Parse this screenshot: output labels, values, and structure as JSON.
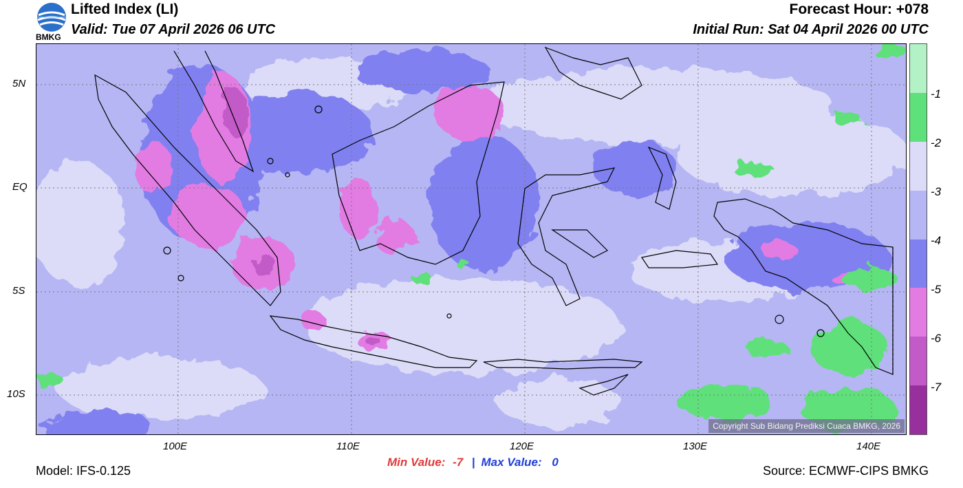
{
  "header": {
    "title": "Lifted Index (LI)",
    "valid": "Valid: Tue 07 April 2026 06 UTC",
    "forecast_hour": "Forecast Hour: +078",
    "initial_run": "Initial Run: Sat 04 April 2026 00 UTC"
  },
  "logo": {
    "text": "BMKG"
  },
  "axes": {
    "lat_ticks": [
      "5N",
      "EQ",
      "5S",
      "10S"
    ],
    "lon_ticks": [
      "100E",
      "110E",
      "120E",
      "130E",
      "140E"
    ]
  },
  "colorbar": {
    "labels": [
      "-1",
      "-2",
      "-3",
      "-4",
      "-5",
      "-6",
      "-7"
    ],
    "colors": [
      "#b3f2c6",
      "#5ee07a",
      "#dcdcf8",
      "#b6b6f4",
      "#8080f0",
      "#e27be2",
      "#c25ac8",
      "#972f9c"
    ]
  },
  "stats": {
    "min_label": "Min Value:",
    "min_value": "-7",
    "separator": "|",
    "max_label": "Max Value:",
    "max_value": "0"
  },
  "copyright": "Copyright Sub Bidang Prediksi Cuaca BMKG, 2026",
  "footer": {
    "model": "Model: IFS-0.125",
    "source": "Source: ECMWF-CIPS BMKG"
  },
  "colors": {
    "min_color": "#e03a3a",
    "max_color": "#1f3fd8",
    "base_field": "#b6b6f4",
    "light_field": "#dcdcf8",
    "strong_field": "#8080f0",
    "magenta": "#e27be2",
    "green": "#5ee07a"
  }
}
